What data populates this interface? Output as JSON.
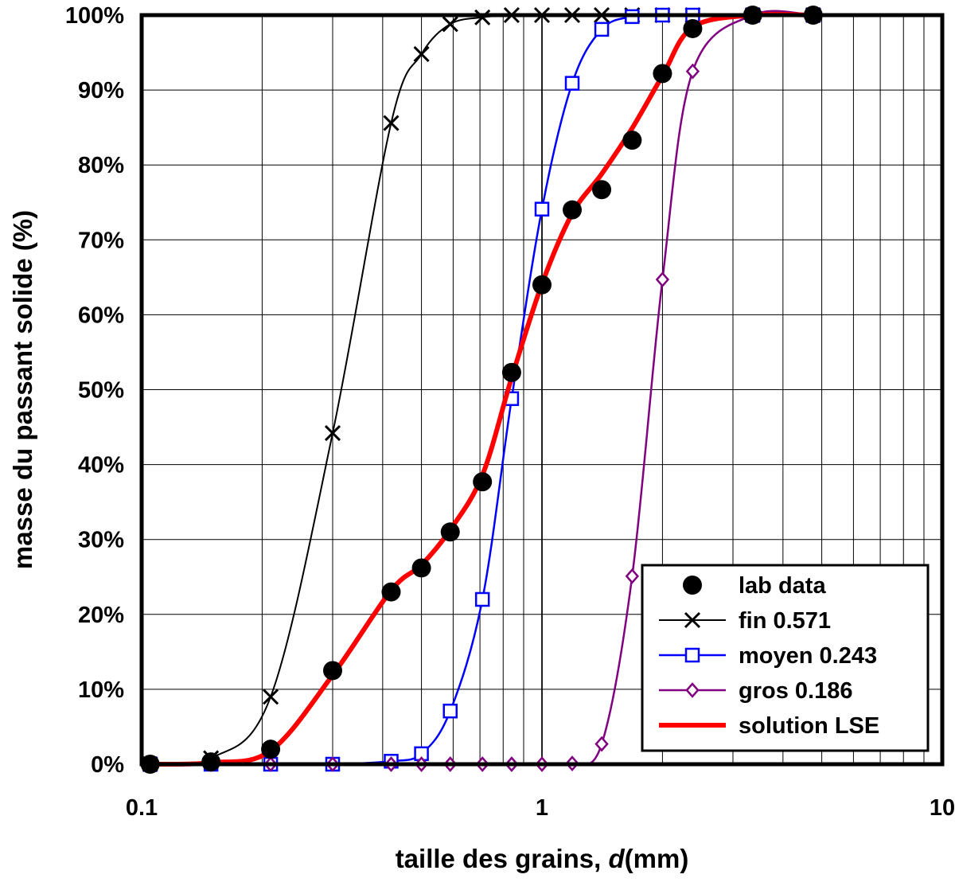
{
  "chart_data": {
    "type": "line",
    "xscale": "log",
    "xlim": [
      0.1,
      10
    ],
    "ylim": [
      0,
      100
    ],
    "grid": true,
    "legend_position": "bottom-right",
    "xlabel_prefix": "taille des grains, ",
    "xlabel_var": "d",
    "xlabel_unit": "(mm)",
    "ylabel": "masse du passant solide (%)",
    "x_ticks": [
      {
        "value": 0.1,
        "label": "0.1"
      },
      {
        "value": 1,
        "label": "1"
      },
      {
        "value": 10,
        "label": "10"
      }
    ],
    "y_ticks": [
      {
        "value": 0,
        "label": "0%"
      },
      {
        "value": 10,
        "label": "10%"
      },
      {
        "value": 20,
        "label": "20%"
      },
      {
        "value": 30,
        "label": "30%"
      },
      {
        "value": 40,
        "label": "40%"
      },
      {
        "value": 50,
        "label": "50%"
      },
      {
        "value": 60,
        "label": "60%"
      },
      {
        "value": 70,
        "label": "70%"
      },
      {
        "value": 80,
        "label": "80%"
      },
      {
        "value": 90,
        "label": "90%"
      },
      {
        "value": 100,
        "label": "100%"
      }
    ],
    "series": [
      {
        "name": "lab data",
        "style": "markers",
        "marker": "filled-circle",
        "color": "#000000",
        "x": [
          0.105,
          0.149,
          0.21,
          0.3,
          0.42,
          0.5,
          0.59,
          0.71,
          0.84,
          1.0,
          1.19,
          1.41,
          1.68,
          2.0,
          2.38,
          3.36,
          4.76
        ],
        "y": [
          0,
          0.3,
          2,
          12.5,
          23,
          26.2,
          31,
          37.7,
          52.3,
          64,
          74,
          76.7,
          83.3,
          92.2,
          98.2,
          100,
          100
        ]
      },
      {
        "name": "fin 0.571",
        "style": "line-markers",
        "marker": "x",
        "color": "#000000",
        "x": [
          0.105,
          0.149,
          0.21,
          0.3,
          0.42,
          0.5,
          0.59,
          0.71,
          0.84,
          1.0,
          1.19,
          1.41,
          1.68,
          2.0,
          2.38,
          3.36,
          4.76
        ],
        "y": [
          0,
          0.8,
          9,
          44.2,
          85.6,
          94.8,
          98.8,
          99.7,
          100,
          100,
          100,
          100,
          100,
          100,
          100,
          100,
          100
        ]
      },
      {
        "name": "moyen 0.243",
        "style": "line-markers",
        "marker": "open-square",
        "color": "#0000ff",
        "x": [
          0.105,
          0.149,
          0.21,
          0.3,
          0.42,
          0.5,
          0.59,
          0.71,
          0.84,
          1.0,
          1.19,
          1.41,
          1.68,
          2.0,
          2.38,
          3.36,
          4.76
        ],
        "y": [
          0,
          0,
          0,
          0,
          0.4,
          1.4,
          7.1,
          22,
          48.8,
          74.1,
          90.9,
          98.1,
          99.8,
          100,
          100,
          100,
          100
        ]
      },
      {
        "name": "gros 0.186",
        "style": "line-markers",
        "marker": "open-diamond",
        "color": "#800080",
        "x": [
          0.105,
          0.149,
          0.21,
          0.3,
          0.42,
          0.5,
          0.59,
          0.71,
          0.84,
          1.0,
          1.19,
          1.41,
          1.68,
          2.0,
          2.38,
          3.36,
          4.76
        ],
        "y": [
          0,
          0,
          0,
          0,
          0,
          0,
          0,
          0,
          0,
          0,
          0.1,
          2.7,
          25.1,
          64.7,
          92.5,
          100,
          100
        ]
      },
      {
        "name": "solution LSE",
        "style": "line",
        "marker": "none",
        "color": "#ff0000",
        "x": [
          0.105,
          0.149,
          0.21,
          0.3,
          0.42,
          0.5,
          0.59,
          0.71,
          0.84,
          1.0,
          1.19,
          1.41,
          1.68,
          2.0,
          2.38,
          3.36,
          4.76
        ],
        "y": [
          0,
          0.2,
          1.8,
          11.9,
          23.2,
          26.6,
          31.3,
          38.6,
          51.6,
          64.1,
          73.5,
          78.8,
          84.9,
          91.9,
          98.4,
          100,
          100
        ]
      }
    ]
  }
}
